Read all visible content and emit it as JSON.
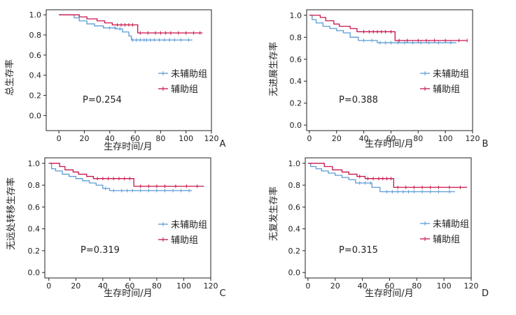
{
  "colors": {
    "non_adjuvant": "#5b9bd5",
    "adjuvant": "#c8144b",
    "axis": "#222222"
  },
  "chart_data": [
    {
      "panel": "A",
      "type": "line",
      "ylabel": "总生存率",
      "xlabel": "生存时间/月",
      "xlim": [
        -10,
        120
      ],
      "ylim": [
        -0.15,
        1.05
      ],
      "xticks": [
        "0",
        "20",
        "40",
        "60",
        "80",
        "100",
        "120"
      ],
      "yticks": [
        "0.0",
        "0.2",
        "0.4",
        "0.6",
        "0.8",
        "1.0"
      ],
      "pvalue": "P=0.254",
      "legend": [
        "未辅助组",
        "辅助组"
      ],
      "series": [
        {
          "name": "未辅助组",
          "steps": [
            [
              0,
              1.0
            ],
            [
              12,
              0.97
            ],
            [
              16,
              0.94
            ],
            [
              22,
              0.91
            ],
            [
              28,
              0.89
            ],
            [
              35,
              0.87
            ],
            [
              45,
              0.86
            ],
            [
              50,
              0.83
            ],
            [
              55,
              0.79
            ],
            [
              57,
              0.75
            ],
            [
              105,
              0.75
            ]
          ],
          "censor": [
            40,
            44,
            48,
            58,
            61,
            64,
            67,
            69,
            72,
            75,
            79,
            83,
            87,
            91,
            96,
            102
          ]
        },
        {
          "name": "辅助组",
          "steps": [
            [
              0,
              1.0
            ],
            [
              16,
              0.98
            ],
            [
              22,
              0.96
            ],
            [
              30,
              0.94
            ],
            [
              36,
              0.92
            ],
            [
              42,
              0.9
            ],
            [
              62,
              0.82
            ],
            [
              113,
              0.82
            ]
          ],
          "censor": [
            46,
            49,
            52,
            55,
            58,
            64,
            70,
            76,
            80,
            84,
            88,
            94,
            100,
            106,
            111
          ]
        }
      ]
    },
    {
      "panel": "B",
      "type": "line",
      "ylabel": "无进展生存率",
      "xlabel": "生存时间/月",
      "xlim": [
        -2,
        120
      ],
      "ylim": [
        -0.05,
        1.05
      ],
      "xticks": [
        "0",
        "20",
        "40",
        "60",
        "80",
        "100",
        "120"
      ],
      "yticks": [
        "0.0",
        "0.2",
        "0.4",
        "0.6",
        "0.8",
        "1.0"
      ],
      "pvalue": "P=0.388",
      "legend": [
        "未辅助组",
        "辅助组"
      ],
      "series": [
        {
          "name": "未辅助组",
          "steps": [
            [
              0,
              1.0
            ],
            [
              2,
              0.96
            ],
            [
              5,
              0.93
            ],
            [
              10,
              0.9
            ],
            [
              15,
              0.88
            ],
            [
              20,
              0.86
            ],
            [
              25,
              0.84
            ],
            [
              30,
              0.8
            ],
            [
              36,
              0.77
            ],
            [
              50,
              0.75
            ],
            [
              108,
              0.75
            ]
          ],
          "censor": [
            40,
            46,
            52,
            56,
            60,
            65,
            70,
            76,
            82,
            88,
            95,
            104
          ]
        },
        {
          "name": "辅助组",
          "steps": [
            [
              0,
              1.0
            ],
            [
              8,
              0.98
            ],
            [
              12,
              0.95
            ],
            [
              18,
              0.92
            ],
            [
              22,
              0.9
            ],
            [
              30,
              0.88
            ],
            [
              35,
              0.85
            ],
            [
              63,
              0.77
            ],
            [
              116,
              0.77
            ]
          ],
          "censor": [
            40,
            44,
            47,
            50,
            53,
            56,
            60,
            66,
            72,
            80,
            86,
            92,
            100,
            110,
            116
          ]
        }
      ]
    },
    {
      "panel": "C",
      "type": "line",
      "ylabel": "无远处转移生存率",
      "xlabel": "生存时间/月",
      "xlim": [
        -3,
        120
      ],
      "ylim": [
        -0.05,
        1.05
      ],
      "xticks": [
        "0",
        "20",
        "40",
        "60",
        "80",
        "100",
        "120"
      ],
      "yticks": [
        "0.0",
        "0.2",
        "0.4",
        "0.6",
        "0.8",
        "1.0"
      ],
      "pvalue": "P=0.319",
      "legend": [
        "未辅助组",
        "辅助组"
      ],
      "series": [
        {
          "name": "未辅助组",
          "steps": [
            [
              0,
              1.0
            ],
            [
              2,
              0.95
            ],
            [
              5,
              0.93
            ],
            [
              10,
              0.9
            ],
            [
              15,
              0.88
            ],
            [
              20,
              0.86
            ],
            [
              25,
              0.84
            ],
            [
              30,
              0.82
            ],
            [
              35,
              0.8
            ],
            [
              40,
              0.77
            ],
            [
              45,
              0.75
            ],
            [
              106,
              0.75
            ]
          ],
          "censor": [
            42,
            48,
            54,
            58,
            62,
            68,
            74,
            80,
            86,
            92,
            98,
            104
          ]
        },
        {
          "name": "辅助组",
          "steps": [
            [
              0,
              1.0
            ],
            [
              8,
              0.97
            ],
            [
              12,
              0.94
            ],
            [
              18,
              0.92
            ],
            [
              22,
              0.9
            ],
            [
              28,
              0.88
            ],
            [
              33,
              0.86
            ],
            [
              63,
              0.79
            ],
            [
              115,
              0.79
            ]
          ],
          "censor": [
            36,
            40,
            44,
            48,
            52,
            56,
            60,
            68,
            74,
            80,
            86,
            94,
            102,
            110
          ]
        }
      ]
    },
    {
      "panel": "D",
      "type": "line",
      "ylabel": "无复发生存率",
      "xlabel": "生存时间/月",
      "xlim": [
        -2,
        120
      ],
      "ylim": [
        -0.05,
        1.05
      ],
      "xticks": [
        "0",
        "20",
        "40",
        "60",
        "80",
        "100",
        "120"
      ],
      "yticks": [
        "0.0",
        "0.2",
        "0.4",
        "0.6",
        "0.8",
        "1.0"
      ],
      "pvalue": "P=0.315",
      "legend": [
        "未辅助组",
        "辅助组"
      ],
      "series": [
        {
          "name": "未辅助组",
          "steps": [
            [
              0,
              1.0
            ],
            [
              2,
              0.97
            ],
            [
              6,
              0.95
            ],
            [
              10,
              0.93
            ],
            [
              15,
              0.91
            ],
            [
              20,
              0.89
            ],
            [
              25,
              0.87
            ],
            [
              30,
              0.85
            ],
            [
              35,
              0.82
            ],
            [
              47,
              0.78
            ],
            [
              53,
              0.74
            ],
            [
              108,
              0.74
            ]
          ],
          "censor": [
            38,
            42,
            46,
            58,
            62,
            66,
            70,
            74,
            78,
            84,
            90,
            96,
            104
          ]
        },
        {
          "name": "辅助组",
          "steps": [
            [
              0,
              1.0
            ],
            [
              12,
              0.97
            ],
            [
              18,
              0.94
            ],
            [
              25,
              0.92
            ],
            [
              30,
              0.9
            ],
            [
              36,
              0.88
            ],
            [
              42,
              0.86
            ],
            [
              63,
              0.78
            ],
            [
              117,
              0.78
            ]
          ],
          "censor": [
            38,
            44,
            48,
            52,
            55,
            58,
            61,
            66,
            72,
            78,
            84,
            90,
            96,
            104,
            112
          ]
        }
      ]
    }
  ]
}
